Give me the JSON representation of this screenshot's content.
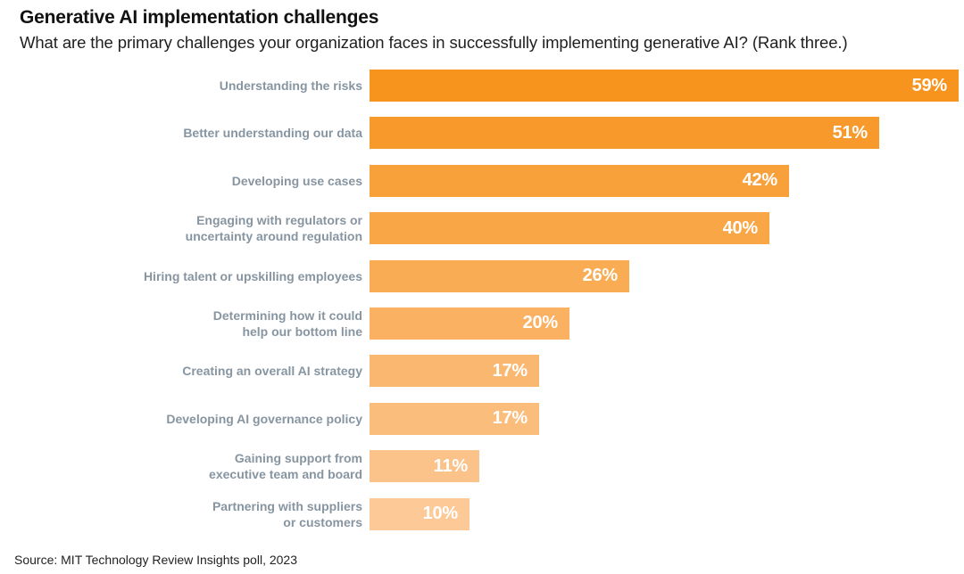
{
  "header": {
    "title": "Generative AI implementation challenges",
    "subtitle": "What are the primary challenges your organization faces in successfully implementing generative AI? (Rank three.)"
  },
  "chart_data": {
    "type": "bar",
    "orientation": "horizontal",
    "title": "Generative AI implementation challenges",
    "subtitle": "What are the primary challenges your organization faces in successfully implementing generative AI? (Rank three.)",
    "unit": "%",
    "axis_labels_shown": false,
    "grid": false,
    "legend": "none",
    "xlim": [
      0,
      60
    ],
    "categories": [
      "Understanding the risks",
      "Better understanding our data",
      "Developing use cases",
      "Engaging with regulators or uncertainty around regulation",
      "Hiring talent or upskilling employees",
      "Determining how it could help our bottom line",
      "Creating an overall AI strategy",
      "Developing AI governance policy",
      "Gaining support from executive team and board",
      "Partnering with suppliers or customers"
    ],
    "category_lines": [
      [
        "Understanding the risks"
      ],
      [
        "Better understanding our data"
      ],
      [
        "Developing use cases"
      ],
      [
        "Engaging with regulators or",
        "uncertainty around regulation"
      ],
      [
        "Hiring talent or upskilling employees"
      ],
      [
        "Determining how it could",
        "help our bottom line"
      ],
      [
        "Creating an overall AI strategy"
      ],
      [
        "Developing AI governance policy"
      ],
      [
        "Gaining support from",
        "executive team and board"
      ],
      [
        "Partnering with suppliers",
        "or customers"
      ]
    ],
    "values": [
      59,
      51,
      42,
      40,
      26,
      20,
      17,
      17,
      11,
      10
    ],
    "value_labels": [
      "59%",
      "51%",
      "42%",
      "40%",
      "26%",
      "20%",
      "17%",
      "17%",
      "11%",
      "10%"
    ],
    "bar_colors": [
      "#F7941E",
      "#F89A2B",
      "#F8A039",
      "#F9A646",
      "#F9AC54",
      "#FAB161",
      "#FAB76F",
      "#FBBD7C",
      "#FBC38A",
      "#FCC997"
    ],
    "label_color": "#8795A1",
    "value_text_color": "#FFFFFF"
  },
  "footer": {
    "source": "Source: MIT Technology Review Insights poll, 2023"
  }
}
